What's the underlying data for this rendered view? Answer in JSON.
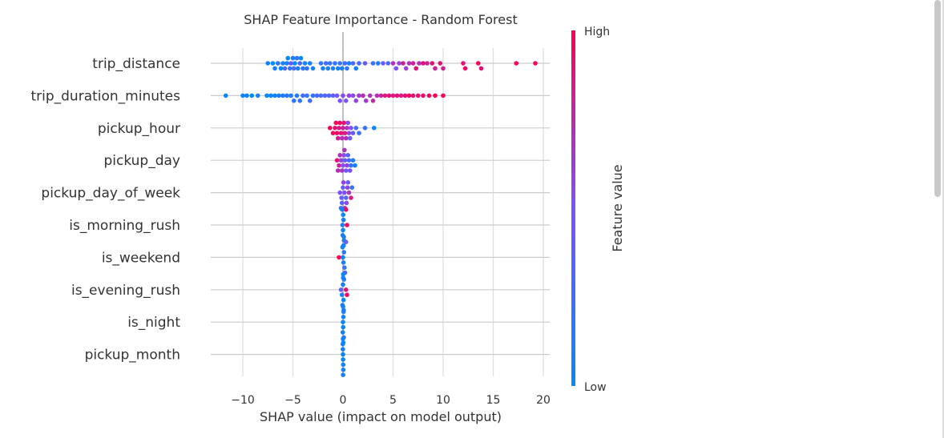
{
  "chart_data": {
    "type": "scatter",
    "subtype": "shap-beeswarm",
    "title": "SHAP Feature Importance - Random Forest",
    "xlabel": "SHAP value (impact on model output)",
    "xlim": [
      -13,
      21
    ],
    "xticks": [
      -10,
      -5,
      0,
      5,
      10,
      15,
      20
    ],
    "grid": true,
    "colorbar": {
      "label": "Feature value",
      "high_label": "High",
      "low_label": "Low",
      "low_color": "#008bfb",
      "mid_color": "#7c52ff",
      "high_color": "#ff0052"
    },
    "features": [
      {
        "name": "trip_distance",
        "points": [
          [
            -7.5,
            0.1
          ],
          [
            -7,
            0
          ],
          [
            -6.8,
            0.1
          ],
          [
            -6.5,
            0.2
          ],
          [
            -6.2,
            0
          ],
          [
            -6,
            0.1
          ],
          [
            -5.8,
            0.3
          ],
          [
            -5.6,
            0.1
          ],
          [
            -5.5,
            0
          ],
          [
            -5.3,
            0.2
          ],
          [
            -5.2,
            0.4
          ],
          [
            -5,
            0.1
          ],
          [
            -4.9,
            0.3
          ],
          [
            -4.8,
            0
          ],
          [
            -4.6,
            0.2
          ],
          [
            -4.5,
            0.1
          ],
          [
            -4.3,
            0.3
          ],
          [
            -4.2,
            0
          ],
          [
            -4,
            0.2
          ],
          [
            -3.8,
            0.1
          ],
          [
            -3.6,
            0.2
          ],
          [
            -3.3,
            0.1
          ],
          [
            -3,
            0.1
          ],
          [
            -2.2,
            0.2
          ],
          [
            -2,
            0.1
          ],
          [
            -1.7,
            0.3
          ],
          [
            -1.5,
            0.1
          ],
          [
            -1.3,
            0.2
          ],
          [
            -1,
            0.1
          ],
          [
            -0.8,
            0.2
          ],
          [
            -0.5,
            0.1
          ],
          [
            -0.3,
            0.2
          ],
          [
            -0.1,
            0.1
          ],
          [
            0.2,
            0.3
          ],
          [
            0.4,
            0.2
          ],
          [
            0.6,
            0.1
          ],
          [
            1,
            0.3
          ],
          [
            1.3,
            0.1
          ],
          [
            1.6,
            0.3
          ],
          [
            2.2,
            0.4
          ],
          [
            3,
            0.2
          ],
          [
            3.5,
            0.1
          ],
          [
            4,
            0.4
          ],
          [
            4.5,
            0.3
          ],
          [
            5,
            0.7
          ],
          [
            5.3,
            0.5
          ],
          [
            5.6,
            0.6
          ],
          [
            6,
            0.8
          ],
          [
            6.3,
            0.6
          ],
          [
            6.6,
            0.7
          ],
          [
            7,
            0.8
          ],
          [
            7.3,
            0.9
          ],
          [
            7.6,
            0.7
          ],
          [
            8,
            0.9
          ],
          [
            8.4,
            0.8
          ],
          [
            8.9,
            0.9
          ],
          [
            9.2,
            0.8
          ],
          [
            9.7,
            0.9
          ],
          [
            10,
            0.8
          ],
          [
            12,
            0.9
          ],
          [
            12.2,
            0.95
          ],
          [
            13.5,
            1
          ],
          [
            13.8,
            0.9
          ],
          [
            17.3,
            1
          ],
          [
            19.2,
            1
          ]
        ]
      },
      {
        "name": "trip_duration_minutes",
        "points": [
          [
            -11.7,
            0
          ],
          [
            -10,
            0.05
          ],
          [
            -9.6,
            0.1
          ],
          [
            -9.1,
            0
          ],
          [
            -8.5,
            0.1
          ],
          [
            -7.6,
            0
          ],
          [
            -7.2,
            0.1
          ],
          [
            -6.8,
            0.05
          ],
          [
            -6.4,
            0.1
          ],
          [
            -6,
            0.15
          ],
          [
            -5.6,
            0.2
          ],
          [
            -5.2,
            0.1
          ],
          [
            -4.9,
            0.2
          ],
          [
            -4.6,
            0.15
          ],
          [
            -4.3,
            0.2
          ],
          [
            -4,
            0.25
          ],
          [
            -3.6,
            0.2
          ],
          [
            -3.3,
            0.25
          ],
          [
            -3,
            0.2
          ],
          [
            -2.6,
            0.3
          ],
          [
            -2.2,
            0.3
          ],
          [
            -1.8,
            0.35
          ],
          [
            -1.4,
            0.3
          ],
          [
            -1,
            0.4
          ],
          [
            -0.6,
            0.45
          ],
          [
            -0.3,
            0.5
          ],
          [
            0,
            0.55
          ],
          [
            0.3,
            0.5
          ],
          [
            0.6,
            0.6
          ],
          [
            1,
            0.55
          ],
          [
            1.3,
            0.6
          ],
          [
            1.6,
            0.65
          ],
          [
            2,
            0.7
          ],
          [
            2.3,
            0.65
          ],
          [
            2.7,
            0.7
          ],
          [
            3,
            0.75
          ],
          [
            3.4,
            0.7
          ],
          [
            3.8,
            0.8
          ],
          [
            4.2,
            0.85
          ],
          [
            4.6,
            0.9
          ],
          [
            5,
            0.85
          ],
          [
            5.4,
            0.9
          ],
          [
            5.8,
            0.85
          ],
          [
            6.2,
            0.9
          ],
          [
            6.6,
            0.95
          ],
          [
            7,
            0.9
          ],
          [
            7.5,
            0.95
          ],
          [
            8,
            0.9
          ],
          [
            8.6,
            0.95
          ],
          [
            9.2,
            1
          ],
          [
            10,
            1
          ]
        ]
      },
      {
        "name": "pickup_hour",
        "points": [
          [
            -1.3,
            1
          ],
          [
            -1,
            0.95
          ],
          [
            -0.8,
            0.9
          ],
          [
            -0.6,
            0.95
          ],
          [
            -0.4,
            0.85
          ],
          [
            -0.2,
            0.9
          ],
          [
            0,
            0.8
          ],
          [
            0.2,
            0.85
          ],
          [
            0.4,
            0.7
          ],
          [
            0.6,
            0.6
          ],
          [
            0.8,
            0.5
          ],
          [
            1,
            0.4
          ],
          [
            1.3,
            0.3
          ],
          [
            1.6,
            0.25
          ],
          [
            2.2,
            0.2
          ],
          [
            3.1,
            0.05
          ],
          [
            -0.7,
            1
          ],
          [
            -0.3,
            0.95
          ],
          [
            0.1,
            0.9
          ],
          [
            0.3,
            0.75
          ],
          [
            -0.5,
            0.85
          ],
          [
            -0.1,
            0.7
          ],
          [
            0.5,
            0.55
          ],
          [
            0.7,
            0.45
          ]
        ]
      },
      {
        "name": "pickup_day",
        "points": [
          [
            -0.6,
            0.9
          ],
          [
            -0.4,
            0.8
          ],
          [
            -0.2,
            0.6
          ],
          [
            0,
            0.5
          ],
          [
            0.2,
            0.4
          ],
          [
            0.4,
            0.6
          ],
          [
            0.6,
            0.3
          ],
          [
            0.8,
            0.2
          ],
          [
            1,
            0.15
          ],
          [
            1.2,
            0.1
          ],
          [
            -0.3,
            0.7
          ],
          [
            0.1,
            0.55
          ],
          [
            0.3,
            0.45
          ],
          [
            -0.1,
            0.65
          ],
          [
            0.5,
            0.35
          ],
          [
            0.7,
            0.5
          ],
          [
            0.15,
            0.7
          ],
          [
            -0.5,
            0.75
          ]
        ]
      },
      {
        "name": "pickup_day_of_week",
        "points": [
          [
            -0.3,
            0.5
          ],
          [
            -0.15,
            0.45
          ],
          [
            0,
            0.4
          ],
          [
            0.15,
            0.5
          ],
          [
            0.3,
            0.3
          ],
          [
            0.45,
            0.6
          ],
          [
            0.6,
            0.7
          ],
          [
            0.8,
            0.85
          ],
          [
            0.9,
            0.2
          ],
          [
            -0.1,
            0.35
          ],
          [
            0.05,
            0.6
          ],
          [
            0.2,
            0.65
          ],
          [
            -0.2,
            0.25
          ],
          [
            0.35,
            0.55
          ],
          [
            0.5,
            0.4
          ]
        ]
      },
      {
        "name": "is_morning_rush",
        "points": [
          [
            -0.05,
            0.05
          ],
          [
            0,
            0.05
          ],
          [
            0.05,
            0.1
          ],
          [
            -0.03,
            0.05
          ],
          [
            0.02,
            0.05
          ],
          [
            0.1,
            0.1
          ],
          [
            0.3,
            0.95
          ],
          [
            0.4,
            0.95
          ],
          [
            -0.08,
            0.05
          ],
          [
            0.06,
            0.08
          ]
        ]
      },
      {
        "name": "is_weekend",
        "points": [
          [
            -0.4,
            1
          ],
          [
            0,
            0.05
          ],
          [
            0.05,
            0.1
          ],
          [
            0.1,
            0.15
          ],
          [
            0.15,
            0.2
          ],
          [
            -0.05,
            0.05
          ],
          [
            0.2,
            0.3
          ],
          [
            0.3,
            0.4
          ],
          [
            0.02,
            0.08
          ],
          [
            0.08,
            0.12
          ]
        ]
      },
      {
        "name": "is_evening_rush",
        "points": [
          [
            -0.2,
            0.4
          ],
          [
            -0.1,
            0.1
          ],
          [
            0,
            0.05
          ],
          [
            0.05,
            0.05
          ],
          [
            0.1,
            0.1
          ],
          [
            0.3,
            0.9
          ],
          [
            0.4,
            0.95
          ],
          [
            -0.05,
            0.05
          ],
          [
            0.02,
            0.06
          ],
          [
            0.07,
            0.1
          ]
        ]
      },
      {
        "name": "is_night",
        "points": [
          [
            0,
            0.05
          ],
          [
            0.02,
            0.05
          ],
          [
            0.04,
            0.1
          ],
          [
            -0.02,
            0.05
          ],
          [
            0.06,
            0.15
          ],
          [
            0.08,
            0.2
          ],
          [
            0.01,
            0.08
          ],
          [
            0.03,
            0.05
          ]
        ]
      },
      {
        "name": "pickup_month",
        "points": [
          [
            0,
            0.05
          ],
          [
            0.01,
            0.05
          ],
          [
            -0.01,
            0.06
          ],
          [
            0.02,
            0.08
          ],
          [
            -0.02,
            0.05
          ],
          [
            0.03,
            0.1
          ],
          [
            0,
            0.07
          ],
          [
            0.01,
            0.09
          ]
        ]
      }
    ]
  }
}
